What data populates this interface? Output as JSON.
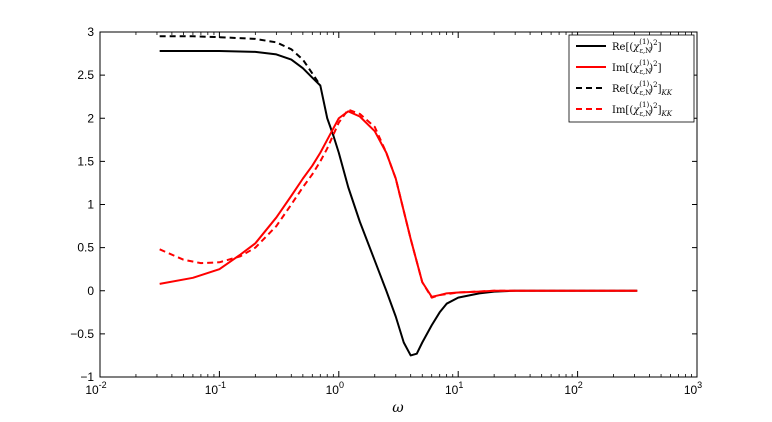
{
  "chart_data": {
    "type": "line",
    "xscale": "log",
    "xlabel": "ω",
    "ylabel": "",
    "title": "",
    "xlim": [
      0.01,
      1000
    ],
    "ylim": [
      -1,
      3
    ],
    "xticks": [
      0.01,
      0.1,
      1,
      10,
      100,
      1000
    ],
    "xtick_labels": [
      {
        "base": "10",
        "exp": "-2"
      },
      {
        "base": "10",
        "exp": "-1"
      },
      {
        "base": "10",
        "exp": "0"
      },
      {
        "base": "10",
        "exp": "1"
      },
      {
        "base": "10",
        "exp": "2"
      },
      {
        "base": "10",
        "exp": "3"
      }
    ],
    "yticks": [
      -1,
      -0.5,
      0,
      0.5,
      1,
      1.5,
      2,
      2.5,
      3
    ],
    "ytick_labels": [
      "−1",
      "−0.5",
      "0",
      "0.5",
      "1",
      "1.5",
      "2",
      "2.5",
      "3"
    ],
    "grid": false,
    "legend_position": "top-right",
    "series": [
      {
        "name": "Re[(χ_{ε,N}^{(1)})²]",
        "color": "#000000",
        "dash": "solid",
        "x": [
          0.0316,
          0.06,
          0.1,
          0.2,
          0.3,
          0.4,
          0.5,
          0.6,
          0.7,
          0.8,
          0.9,
          1.0,
          1.2,
          1.5,
          2.0,
          2.5,
          3.0,
          3.5,
          4.0,
          4.5,
          5.0,
          6.0,
          7.0,
          8.0,
          10.0,
          15.0,
          20.0,
          30.0,
          50.0,
          100.0,
          316.0
        ],
        "y": [
          2.78,
          2.78,
          2.78,
          2.77,
          2.74,
          2.68,
          2.58,
          2.47,
          2.38,
          2.0,
          1.8,
          1.6,
          1.2,
          0.8,
          0.35,
          0.0,
          -0.3,
          -0.6,
          -0.75,
          -0.73,
          -0.6,
          -0.4,
          -0.25,
          -0.15,
          -0.08,
          -0.03,
          -0.01,
          0.0,
          0.0,
          0.0,
          0.0
        ]
      },
      {
        "name": "Im[(χ_{ε,N}^{(1)})²]",
        "color": "#ff0000",
        "dash": "solid",
        "x": [
          0.0316,
          0.06,
          0.1,
          0.15,
          0.2,
          0.3,
          0.4,
          0.5,
          0.6,
          0.7,
          0.8,
          1.0,
          1.2,
          1.5,
          2.0,
          2.5,
          3.0,
          4.0,
          5.0,
          6.0,
          7.0,
          8.0,
          10.0,
          15.0,
          20.0,
          30.0,
          50.0,
          100.0,
          316.0
        ],
        "y": [
          0.08,
          0.15,
          0.25,
          0.42,
          0.55,
          0.85,
          1.1,
          1.3,
          1.45,
          1.6,
          1.75,
          2.0,
          2.08,
          2.02,
          1.85,
          1.6,
          1.3,
          0.6,
          0.1,
          -0.07,
          -0.05,
          -0.03,
          -0.02,
          -0.01,
          0.0,
          0.0,
          0.0,
          0.0,
          0.0
        ]
      },
      {
        "name": "Re[(χ_{ε,N}^{(1)})²]_{KK}",
        "color": "#000000",
        "dash": "dashed",
        "x": [
          0.0316,
          0.06,
          0.1,
          0.2,
          0.3,
          0.4,
          0.5,
          0.6,
          0.7
        ],
        "y": [
          2.95,
          2.95,
          2.94,
          2.92,
          2.88,
          2.8,
          2.68,
          2.52,
          2.38
        ]
      },
      {
        "name": "Im[(χ_{ε,N}^{(1)})²]_{KK}",
        "color": "#ff0000",
        "dash": "dashed",
        "x": [
          0.0316,
          0.05,
          0.07,
          0.1,
          0.15,
          0.2,
          0.3,
          0.4,
          0.5,
          0.6,
          0.7,
          0.8,
          1.0,
          1.2,
          1.5,
          2.0,
          2.5,
          3.0,
          4.0,
          5.0,
          6.0,
          7.0,
          10.0,
          20.0,
          50.0,
          100.0,
          316.0
        ],
        "y": [
          0.48,
          0.36,
          0.32,
          0.33,
          0.4,
          0.5,
          0.75,
          1.0,
          1.2,
          1.35,
          1.5,
          1.65,
          1.95,
          2.1,
          2.05,
          1.9,
          1.6,
          1.3,
          0.6,
          0.1,
          -0.08,
          -0.05,
          -0.02,
          0.0,
          0.0,
          0.0,
          0.0
        ]
      }
    ]
  }
}
